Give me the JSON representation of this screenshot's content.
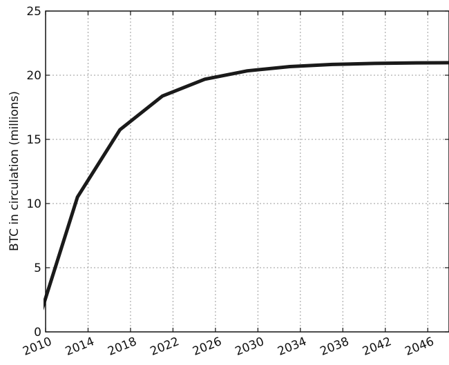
{
  "chart_data": {
    "type": "line",
    "title": "",
    "xlabel": "",
    "ylabel": "BTC in circulation (millions)",
    "xlim": [
      2010,
      2048
    ],
    "ylim": [
      0,
      25
    ],
    "grid": true,
    "legend": "none",
    "x_ticks": [
      "2010",
      "2014",
      "2018",
      "2022",
      "2026",
      "2030",
      "2034",
      "2038",
      "2042",
      "2046"
    ],
    "y_ticks": [
      "0",
      "5",
      "10",
      "15",
      "20",
      "25"
    ],
    "line_color": "#1a1a1a",
    "series": [
      {
        "x": [
          2009,
          2013,
          2017,
          2021,
          2025,
          2029,
          2033,
          2037,
          2041,
          2045,
          2049
        ],
        "y": [
          0,
          10.5,
          15.75,
          18.375,
          19.6875,
          20.34,
          20.67,
          20.84,
          20.92,
          20.96,
          20.98
        ]
      }
    ]
  }
}
